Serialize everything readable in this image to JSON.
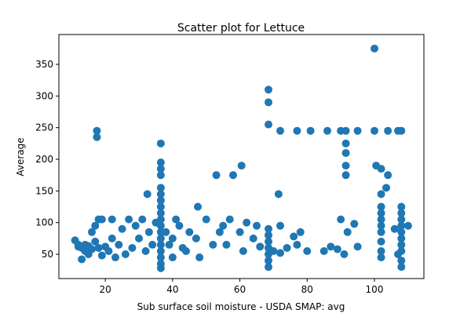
{
  "chart_data": {
    "type": "scatter",
    "title": "Scatter plot for Lettuce",
    "x_label": "Sub surface soil moisture - USDA SMAP: avg",
    "y_label": "Average",
    "color": "#1f77b4",
    "x": [
      11,
      12,
      12,
      13,
      13,
      14,
      14,
      15,
      15,
      16,
      16,
      17,
      17,
      17.5,
      17.5,
      18,
      18,
      19,
      19,
      20,
      21,
      22,
      22,
      23,
      24,
      25,
      26,
      27,
      28,
      29,
      30,
      31,
      32,
      32.5,
      33,
      34,
      35,
      36.5,
      36.5,
      36.5,
      36.5,
      36.5,
      36.5,
      36.5,
      36.5,
      36.5,
      36.5,
      36.5,
      36.5,
      36.5,
      36.5,
      36.5,
      36.5,
      36.5,
      36.5,
      38,
      39,
      40,
      40,
      41,
      42,
      43,
      44,
      45,
      47,
      47.5,
      48,
      50,
      52,
      53,
      54,
      55,
      56,
      57,
      58,
      60,
      60.5,
      61,
      62,
      64,
      65,
      66,
      68.5,
      68.5,
      68.5,
      68.5,
      68.5,
      68.5,
      68.5,
      68.5,
      68.5,
      68.5,
      70,
      71.5,
      72,
      72,
      74,
      76,
      77,
      78,
      80,
      72,
      77,
      81,
      86,
      90,
      91.5,
      95,
      100,
      104,
      107,
      108,
      85,
      87,
      89,
      90,
      91,
      91.5,
      91.5,
      91.5,
      91.5,
      92,
      94,
      95,
      100,
      100.5,
      102,
      102,
      103.5,
      104,
      102,
      102,
      102,
      102,
      102,
      102,
      102,
      102,
      108,
      108,
      108,
      108,
      108,
      108,
      108,
      108,
      108,
      108,
      106,
      107,
      110
    ],
    "values": [
      72,
      62,
      65,
      42,
      60,
      55,
      65,
      63,
      50,
      58,
      85,
      70,
      95,
      245,
      235,
      105,
      60,
      48,
      105,
      62,
      55,
      105,
      75,
      45,
      65,
      90,
      50,
      105,
      60,
      95,
      75,
      105,
      55,
      145,
      85,
      65,
      100,
      225,
      195,
      185,
      175,
      155,
      145,
      135,
      125,
      115,
      105,
      95,
      85,
      75,
      65,
      55,
      45,
      35,
      28,
      85,
      65,
      75,
      45,
      105,
      95,
      60,
      55,
      85,
      75,
      125,
      45,
      105,
      65,
      175,
      85,
      95,
      65,
      105,
      175,
      85,
      190,
      55,
      100,
      75,
      95,
      62,
      310,
      290,
      255,
      90,
      80,
      70,
      60,
      50,
      40,
      30,
      55,
      145,
      95,
      52,
      60,
      78,
      65,
      85,
      55,
      245,
      245,
      245,
      245,
      245,
      245,
      245,
      245,
      245,
      245,
      245,
      55,
      62,
      58,
      105,
      50,
      225,
      210,
      190,
      175,
      85,
      98,
      62,
      375,
      190,
      185,
      145,
      155,
      175,
      125,
      115,
      105,
      95,
      85,
      70,
      55,
      45,
      125,
      115,
      105,
      95,
      85,
      75,
      65,
      55,
      40,
      30,
      90,
      50,
      95
    ],
    "xlim": [
      6.2,
      114.7
    ],
    "ylim": [
      11.6,
      397.1
    ],
    "xticks": [
      20,
      40,
      60,
      80,
      100
    ],
    "yticks": [
      50,
      100,
      150,
      200,
      250,
      300,
      350
    ]
  }
}
